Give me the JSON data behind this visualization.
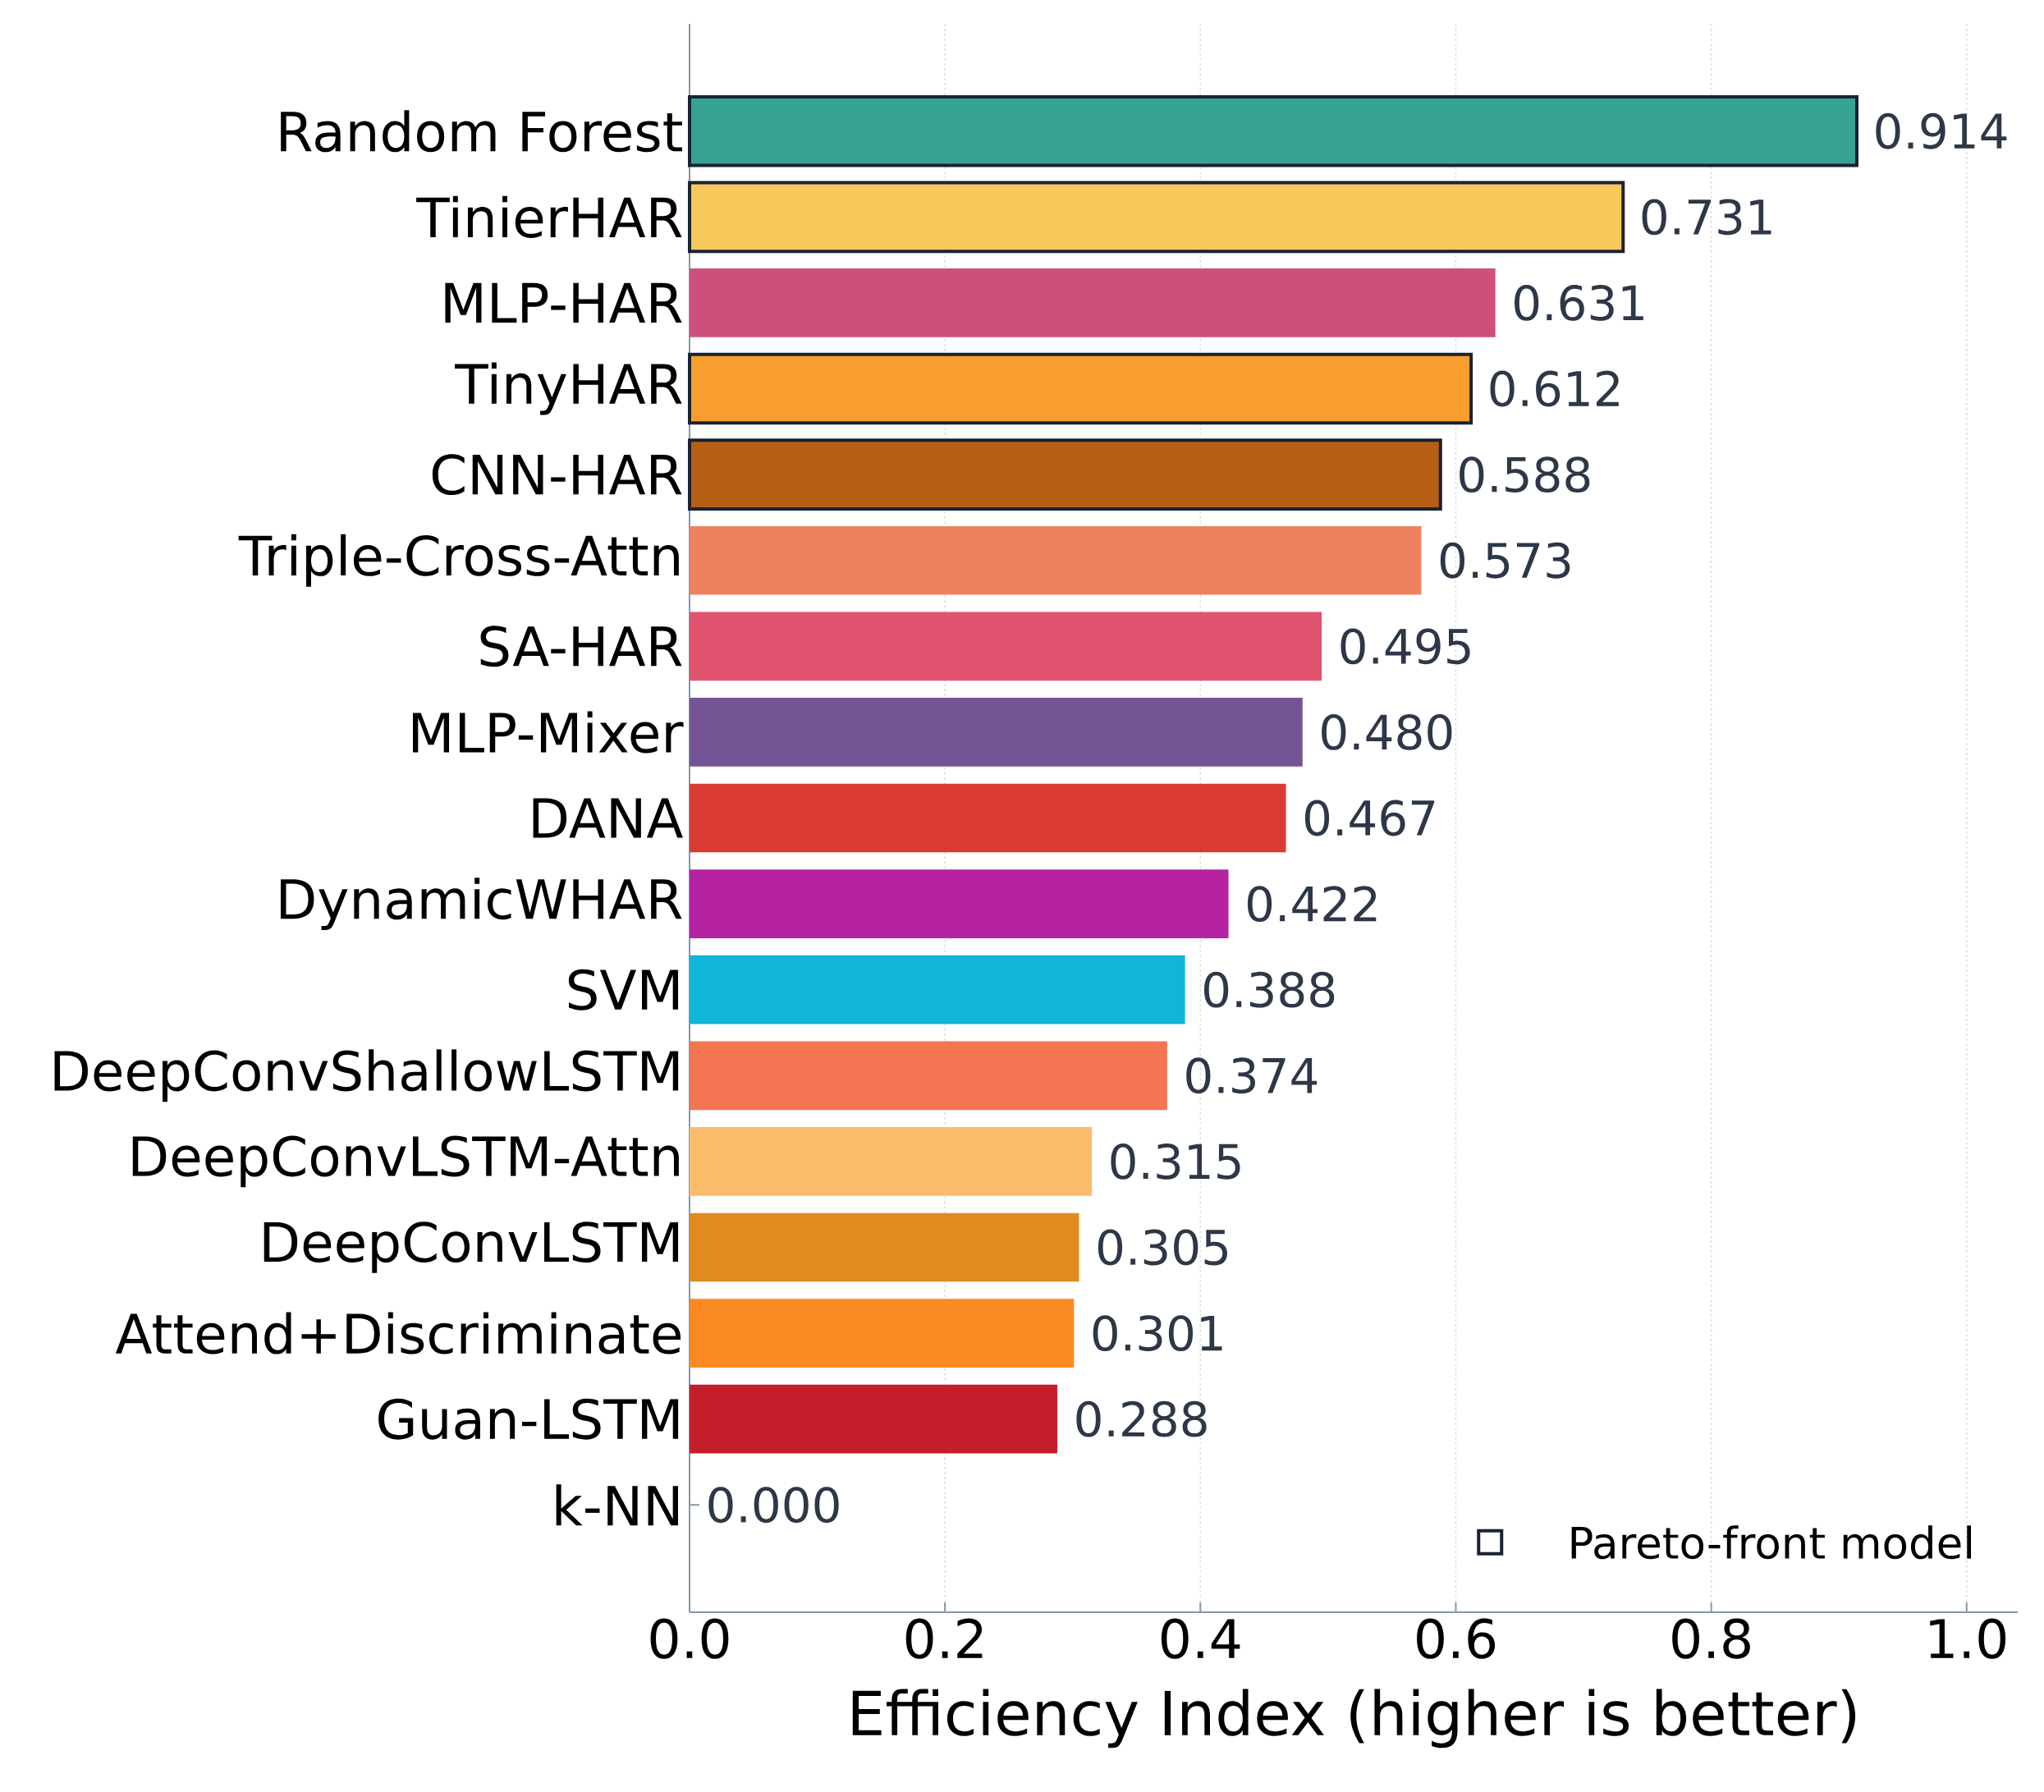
{
  "chart_data": {
    "type": "bar",
    "orientation": "horizontal",
    "xlabel": "Efficiency Index (higher is better)",
    "categories": [
      "Random Forest",
      "TinierHAR",
      "MLP-HAR",
      "TinyHAR",
      "CNN-HAR",
      "Triple-Cross-Attn",
      "SA-HAR",
      "MLP-Mixer",
      "DANA",
      "DynamicWHAR",
      "SVM",
      "DeepConvShallowLSTM",
      "DeepConvLSTM-Attn",
      "DeepConvLSTM",
      "Attend+Discriminate",
      "Guan-LSTM",
      "k-NN"
    ],
    "series": [
      {
        "name": "Pareto-front model",
        "values": [
          0.914,
          0.731,
          null,
          0.612,
          0.588,
          null,
          null,
          null,
          null,
          null,
          null,
          null,
          null,
          null,
          null,
          null,
          null
        ],
        "colors": [
          "#37a393",
          "#f7c95b",
          null,
          "#f79e2e",
          "#b56015",
          null,
          null,
          null,
          null,
          null,
          null,
          null,
          null,
          null,
          null,
          null,
          null
        ],
        "value_labels": [
          "0.914",
          "0.731",
          null,
          "0.612",
          "0.588",
          null,
          null,
          null,
          null,
          null,
          null,
          null,
          null,
          null,
          null,
          null,
          null
        ]
      },
      {
        "values": [
          null,
          null,
          0.631,
          null,
          null,
          0.573,
          0.495,
          0.48,
          0.467,
          0.422,
          0.388,
          0.374,
          0.315,
          0.305,
          0.301,
          0.288,
          0.0
        ],
        "colors": [
          null,
          null,
          "#cf4f7c",
          null,
          null,
          "#ee8260",
          "#e05470",
          "#735595",
          "#d93a32",
          "#b522a2",
          "#10b6d8",
          "#f37552",
          "#fcbc6c",
          "#e08a20",
          "#fb8a22",
          "#c41e2c",
          "#7f7f7f"
        ],
        "value_labels": [
          null,
          null,
          "0.631",
          null,
          null,
          "0.573",
          "0.495",
          "0.480",
          "0.467",
          "0.422",
          "0.388",
          "0.374",
          "0.315",
          "0.305",
          "0.301",
          "0.288",
          "0.000"
        ]
      }
    ],
    "xlim": [
      0,
      1.04
    ],
    "xticks": [
      {
        "value": 0,
        "label": "0.0"
      },
      {
        "value": 0.2,
        "label": "0.2"
      },
      {
        "value": 0.4,
        "label": "0.4"
      },
      {
        "value": 0.6,
        "label": "0.6"
      },
      {
        "value": 0.8,
        "label": "0.8"
      },
      {
        "value": 1.0,
        "label": "1.0"
      }
    ],
    "grid": "x",
    "legend": "bottom right"
  }
}
